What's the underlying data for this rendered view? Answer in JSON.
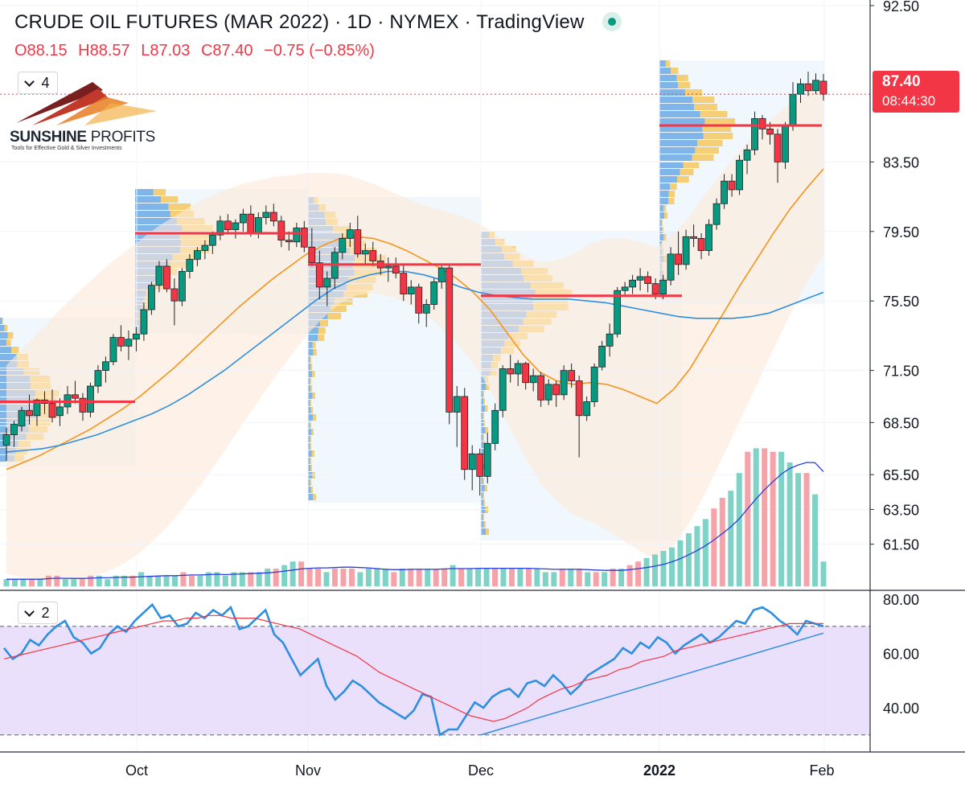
{
  "header": {
    "title": "CRUDE OIL FUTURES (MAR 2022) · 1D · NYMEX · TradingView",
    "ohlc": {
      "open": "O88.15",
      "high": "H88.57",
      "low": "L87.03",
      "close": "C87.40",
      "change": "−0.75 (−0.85%)"
    },
    "status_color": "#089981"
  },
  "logo": {
    "name_bold": "SUNSHINE",
    "name_light": " PROFITS",
    "tagline": "Tools for Effective Gold & Silver Investments"
  },
  "price_panel": {
    "collapse_count": "4"
  },
  "rsi_panel": {
    "collapse_count": "2"
  },
  "last_price": {
    "price": "87.40",
    "countdown": "08:44:30",
    "color": "#f23645"
  },
  "colors": {
    "up": "#089981",
    "down": "#f23645",
    "ma_fast": "#f7931a",
    "ma_slow": "#2e8fe0",
    "rsi": "#2e8fe0",
    "rsi_ma": "#f23645",
    "rsi_band": "#e1d3fa",
    "vol_up": "#7fd3c6",
    "vol_down": "#f5a3a8"
  },
  "chart_data": {
    "type": "candlestick",
    "instrument": "CRUDE OIL FUTURES (MAR 2022)",
    "timeframe": "1D",
    "price_axis": {
      "ticks": [
        "92.50",
        "83.50",
        "79.50",
        "75.50",
        "71.50",
        "68.50",
        "65.50",
        "63.50",
        "61.50"
      ],
      "ylim": [
        60.5,
        92.5
      ]
    },
    "time_axis": [
      "Oct",
      "Nov",
      "Dec",
      "2022",
      "Feb"
    ],
    "rsi_axis": {
      "ticks": [
        "80.00",
        "60.00",
        "40.00"
      ],
      "overbought": 70,
      "oversold": 30
    },
    "candles": [
      [
        67.2,
        68.2,
        66.3,
        67.8
      ],
      [
        67.8,
        68.6,
        67.1,
        68.4
      ],
      [
        68.3,
        69.4,
        68.0,
        69.2
      ],
      [
        69.2,
        70.1,
        68.4,
        68.9
      ],
      [
        68.9,
        69.9,
        68.3,
        69.8
      ],
      [
        69.8,
        70.3,
        69.0,
        69.6
      ],
      [
        69.6,
        70.4,
        68.5,
        68.8
      ],
      [
        68.9,
        69.9,
        68.3,
        69.4
      ],
      [
        69.4,
        70.6,
        69.0,
        70.1
      ],
      [
        70.1,
        70.9,
        69.6,
        69.9
      ],
      [
        69.9,
        70.2,
        68.6,
        69.1
      ],
      [
        69.1,
        70.8,
        68.8,
        70.6
      ],
      [
        70.6,
        71.8,
        70.2,
        71.5
      ],
      [
        71.5,
        72.3,
        70.8,
        72.0
      ],
      [
        72.0,
        73.6,
        71.8,
        73.4
      ],
      [
        73.4,
        74.1,
        72.6,
        72.9
      ],
      [
        72.9,
        73.8,
        72.1,
        73.3
      ],
      [
        73.3,
        74.0,
        72.6,
        73.6
      ],
      [
        73.6,
        75.4,
        73.2,
        75.0
      ],
      [
        75.0,
        76.6,
        74.7,
        76.4
      ],
      [
        76.4,
        77.8,
        76.0,
        77.5
      ],
      [
        77.5,
        77.9,
        76.0,
        76.2
      ],
      [
        76.2,
        76.8,
        74.1,
        75.5
      ],
      [
        75.5,
        77.4,
        75.2,
        77.2
      ],
      [
        77.2,
        78.2,
        76.8,
        77.9
      ],
      [
        77.9,
        78.6,
        77.5,
        78.4
      ],
      [
        78.4,
        79.0,
        77.9,
        78.7
      ],
      [
        78.7,
        79.5,
        78.2,
        79.3
      ],
      [
        79.3,
        80.4,
        79.0,
        80.1
      ],
      [
        80.1,
        80.5,
        79.4,
        79.6
      ],
      [
        79.6,
        80.2,
        79.1,
        80.0
      ],
      [
        80.0,
        80.8,
        79.5,
        80.5
      ],
      [
        80.5,
        81.0,
        79.2,
        79.4
      ],
      [
        79.4,
        80.6,
        79.1,
        80.3
      ],
      [
        80.3,
        81.0,
        79.9,
        80.6
      ],
      [
        80.6,
        81.1,
        79.8,
        80.1
      ],
      [
        80.1,
        80.4,
        78.6,
        79.0
      ],
      [
        79.0,
        79.5,
        78.4,
        78.9
      ],
      [
        78.9,
        80.0,
        78.6,
        79.7
      ],
      [
        79.7,
        80.1,
        78.3,
        78.6
      ],
      [
        78.6,
        79.7,
        77.5,
        77.7
      ],
      [
        77.7,
        78.4,
        75.6,
        76.3
      ],
      [
        76.3,
        77.2,
        75.2,
        76.8
      ],
      [
        76.8,
        78.6,
        76.2,
        78.3
      ],
      [
        78.3,
        79.4,
        77.9,
        79.1
      ],
      [
        79.1,
        80.0,
        78.6,
        79.6
      ],
      [
        79.6,
        80.4,
        78.0,
        78.2
      ],
      [
        78.2,
        78.8,
        77.6,
        78.4
      ],
      [
        78.4,
        78.9,
        77.5,
        77.8
      ],
      [
        77.8,
        78.2,
        77.0,
        77.4
      ],
      [
        77.4,
        78.0,
        76.6,
        77.5
      ],
      [
        77.5,
        78.0,
        76.8,
        77.1
      ],
      [
        77.1,
        77.6,
        75.5,
        75.9
      ],
      [
        75.9,
        76.7,
        75.3,
        76.3
      ],
      [
        76.3,
        76.5,
        74.2,
        74.8
      ],
      [
        74.8,
        75.6,
        74.0,
        75.3
      ],
      [
        75.3,
        76.8,
        75.0,
        76.6
      ],
      [
        76.6,
        77.6,
        76.2,
        77.4
      ],
      [
        77.4,
        77.6,
        68.4,
        69.1
      ],
      [
        69.1,
        70.6,
        67.1,
        70.0
      ],
      [
        70.0,
        70.5,
        65.2,
        65.8
      ],
      [
        65.8,
        67.2,
        64.6,
        66.7
      ],
      [
        66.7,
        67.0,
        64.3,
        65.4
      ],
      [
        65.4,
        67.9,
        65.0,
        67.3
      ],
      [
        67.3,
        69.6,
        66.9,
        69.2
      ],
      [
        69.2,
        71.8,
        68.8,
        71.6
      ],
      [
        71.6,
        72.4,
        70.8,
        71.3
      ],
      [
        71.3,
        72.1,
        70.6,
        71.9
      ],
      [
        71.9,
        72.0,
        70.4,
        70.8
      ],
      [
        70.8,
        71.6,
        70.3,
        71.2
      ],
      [
        71.2,
        71.4,
        69.4,
        69.8
      ],
      [
        69.8,
        71.0,
        69.5,
        70.7
      ],
      [
        70.7,
        70.9,
        69.4,
        70.1
      ],
      [
        70.1,
        71.8,
        69.8,
        71.5
      ],
      [
        71.5,
        71.9,
        70.5,
        70.9
      ],
      [
        70.9,
        71.2,
        66.5,
        68.9
      ],
      [
        68.9,
        70.0,
        68.6,
        69.7
      ],
      [
        69.7,
        71.9,
        69.4,
        71.7
      ],
      [
        71.7,
        73.2,
        71.5,
        72.9
      ],
      [
        72.9,
        74.2,
        72.3,
        73.6
      ],
      [
        73.6,
        76.3,
        73.4,
        76.1
      ],
      [
        76.1,
        76.6,
        75.8,
        76.3
      ],
      [
        76.3,
        77.0,
        75.9,
        76.7
      ],
      [
        76.7,
        77.4,
        76.1,
        76.9
      ],
      [
        76.9,
        77.2,
        76.0,
        76.5
      ],
      [
        76.5,
        76.8,
        75.6,
        75.9
      ],
      [
        75.9,
        77.0,
        75.6,
        76.7
      ],
      [
        76.7,
        78.6,
        76.4,
        78.2
      ],
      [
        78.2,
        79.5,
        77.0,
        77.6
      ],
      [
        77.6,
        79.6,
        77.3,
        79.2
      ],
      [
        79.2,
        79.9,
        78.6,
        79.1
      ],
      [
        79.1,
        79.4,
        77.9,
        78.4
      ],
      [
        78.4,
        80.2,
        78.1,
        79.9
      ],
      [
        79.9,
        81.4,
        79.6,
        81.1
      ],
      [
        81.1,
        82.8,
        80.8,
        82.4
      ],
      [
        82.4,
        82.8,
        81.5,
        81.9
      ],
      [
        81.9,
        83.9,
        81.6,
        83.6
      ],
      [
        83.6,
        84.5,
        82.8,
        84.2
      ],
      [
        84.2,
        86.4,
        83.9,
        86.0
      ],
      [
        86.0,
        86.2,
        84.8,
        85.4
      ],
      [
        85.4,
        85.8,
        84.5,
        85.1
      ],
      [
        85.1,
        85.4,
        82.3,
        83.5
      ],
      [
        83.5,
        85.8,
        83.1,
        85.6
      ],
      [
        85.6,
        88.1,
        85.3,
        87.4
      ],
      [
        87.4,
        88.3,
        86.9,
        88.0
      ],
      [
        88.0,
        88.7,
        87.3,
        87.6
      ],
      [
        87.6,
        88.6,
        87.4,
        88.2
      ],
      [
        88.15,
        88.57,
        87.03,
        87.4
      ]
    ],
    "moving_averages": [
      {
        "period_role": "fast",
        "values": [
          65.8,
          66.2,
          66.6,
          67.1,
          67.6,
          68.1,
          68.7,
          69.3,
          70.0,
          70.8,
          71.6,
          72.5,
          73.4,
          74.3,
          75.2,
          76.0,
          76.8,
          77.5,
          78.2,
          78.7,
          79.1,
          79.2,
          79.1,
          78.8,
          78.4,
          77.9,
          77.4,
          76.8,
          76.0,
          75.0,
          73.7,
          72.4,
          71.4,
          70.9,
          70.7,
          70.8,
          70.7,
          70.4,
          70.0,
          69.6,
          70.4,
          71.6,
          73.2,
          74.8,
          76.4,
          77.9,
          79.4,
          80.8,
          82.0,
          83.1
        ]
      },
      {
        "period_role": "slow",
        "values": [
          66.8,
          66.9,
          67.0,
          67.2,
          67.5,
          67.8,
          68.2,
          68.6,
          69.0,
          69.5,
          70.1,
          70.8,
          71.5,
          72.3,
          73.1,
          73.9,
          74.7,
          75.5,
          76.2,
          76.7,
          77.0,
          77.2,
          77.2,
          77.0,
          76.7,
          76.3,
          76.0,
          75.8,
          75.7,
          75.6,
          75.6,
          75.6,
          75.5,
          75.4,
          75.2,
          75.0,
          74.8,
          74.6,
          74.5,
          74.5,
          74.5,
          74.6,
          74.8,
          75.2,
          75.6,
          76.0
        ]
      }
    ],
    "volume_profiles_poc": [
      "69.70",
      "79.40",
      "77.60",
      "75.80",
      "85.60"
    ],
    "volume": [
      2,
      2,
      2,
      2,
      2,
      3,
      3,
      2,
      2,
      2,
      3,
      3,
      2,
      3,
      3,
      3,
      4,
      3,
      3,
      3,
      3,
      4,
      3,
      3,
      4,
      4,
      3,
      4,
      4,
      4,
      4,
      5,
      5,
      6,
      7,
      7,
      5,
      5,
      4,
      5,
      5,
      5,
      4,
      5,
      5,
      5,
      4,
      5,
      5,
      5,
      5,
      5,
      5,
      6,
      5,
      5,
      5,
      5,
      5,
      5,
      5,
      5,
      5,
      5,
      4,
      4,
      5,
      5,
      5,
      4,
      4,
      4,
      5,
      5,
      6,
      7,
      8,
      9,
      10,
      11,
      13,
      15,
      17,
      19,
      22,
      25,
      27,
      32,
      38,
      39,
      39,
      38,
      38,
      35,
      32,
      32,
      26,
      7
    ],
    "rsi": [
      62,
      58,
      60,
      65,
      63,
      67,
      70,
      72,
      66,
      64,
      60,
      62,
      67,
      70,
      68,
      72,
      75,
      78,
      73,
      74,
      70,
      71,
      75,
      73,
      76,
      74,
      77,
      69,
      70,
      73,
      76,
      67,
      64,
      58,
      52,
      55,
      58,
      48,
      43,
      46,
      50,
      48,
      45,
      42,
      40,
      38,
      36,
      39,
      45,
      44,
      30,
      32,
      32,
      37,
      42,
      40,
      44,
      46,
      47,
      44,
      49,
      50,
      48,
      52,
      49,
      45,
      48,
      52,
      54,
      56,
      58,
      62,
      60,
      64,
      62,
      66,
      64,
      60,
      63,
      65,
      67,
      64,
      66,
      69,
      72,
      71,
      76,
      77,
      75,
      72,
      70,
      67,
      72,
      71,
      70
    ],
    "rsi_ma": [
      58,
      59,
      60,
      61,
      62,
      63,
      64,
      65,
      66,
      67,
      68,
      69,
      70,
      71,
      72,
      72,
      73,
      73,
      74,
      74,
      73,
      73,
      73,
      72,
      71,
      70,
      69,
      67,
      65,
      63,
      61,
      59,
      56,
      53,
      51,
      49,
      47,
      45,
      43,
      41,
      39,
      37,
      36,
      35,
      36,
      38,
      40,
      43,
      45,
      47,
      48,
      50,
      51,
      52,
      54,
      55,
      57,
      58,
      59,
      61,
      62,
      63,
      64,
      65,
      66,
      67,
      68,
      69,
      70,
      71,
      71,
      71,
      71
    ]
  }
}
